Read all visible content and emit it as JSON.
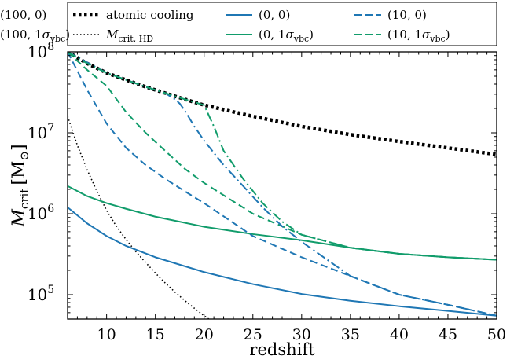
{
  "chart_data": {
    "type": "line",
    "title": "",
    "xlabel": "redshift",
    "ylabel": {
      "main": "M",
      "sub": "crit",
      "unit_open": "[M",
      "unit_sub": "⊙",
      "unit_close": "]"
    },
    "xlim": [
      6,
      50
    ],
    "ylim": [
      50000,
      100000000
    ],
    "yscale": "log",
    "xticks": [
      10,
      15,
      20,
      25,
      30,
      35,
      40,
      45,
      50
    ],
    "yticks": [
      {
        "value": 100000,
        "base": "10",
        "exp": "5"
      },
      {
        "value": 1000000,
        "base": "10",
        "exp": "6"
      },
      {
        "value": 10000000,
        "base": "10",
        "exp": "7"
      },
      {
        "value": 100000000,
        "base": "10",
        "exp": "8"
      }
    ],
    "grid": false,
    "legend_position": "top",
    "series": [
      {
        "name": "atomic cooling",
        "color": "#000000",
        "dash": "dotted-thick",
        "x": [
          6,
          8,
          10,
          12,
          14,
          16,
          18,
          20,
          25,
          30,
          35,
          40,
          45,
          50
        ],
        "y": [
          100000000,
          72000000,
          55000000,
          45000000,
          37000000,
          31000000,
          26000000,
          22000000,
          16000000,
          12000000,
          9500000,
          7800000,
          6500000,
          5400000
        ]
      },
      {
        "name": "M_crit,HD",
        "color": "#000000",
        "dash": "dotted",
        "x": [
          6,
          7,
          8,
          9,
          10,
          11,
          12,
          13,
          14,
          15,
          16,
          17,
          18,
          19,
          20,
          21
        ],
        "y": [
          16000000,
          7000000,
          3500000,
          1900000,
          1100000,
          700000,
          480000,
          340000,
          250000,
          185000,
          140000,
          108000,
          85000,
          68000,
          55000,
          45000
        ]
      },
      {
        "name": "(0, 0)",
        "color": "#1f77b4",
        "dash": "solid",
        "x": [
          6,
          8,
          10,
          12,
          15,
          20,
          25,
          30,
          35,
          40,
          45,
          50
        ],
        "y": [
          1200000,
          760000,
          530000,
          400000,
          290000,
          190000,
          135000,
          102000,
          84000,
          72000,
          63000,
          55000
        ]
      },
      {
        "name": "(0, 1σ_vbc)",
        "color": "#119c6b",
        "dash": "solid",
        "x": [
          6,
          8,
          10,
          12,
          15,
          20,
          25,
          30,
          35,
          40,
          45,
          50
        ],
        "y": [
          2200000,
          1650000,
          1350000,
          1150000,
          920000,
          690000,
          560000,
          470000,
          380000,
          320000,
          290000,
          270000
        ]
      },
      {
        "name": "(10, 0)",
        "color": "#1f77b4",
        "dash": "dashed",
        "x": [
          6,
          8,
          10,
          12,
          14,
          16,
          18,
          20,
          25,
          30,
          35,
          40,
          45,
          50
        ],
        "y": [
          100000000,
          34000000,
          13000000,
          6500000,
          4000000,
          2700000,
          1900000,
          1350000,
          530000,
          290000,
          170000,
          100000,
          75000,
          55000
        ]
      },
      {
        "name": "(10, 1σ_vbc)",
        "color": "#119c6b",
        "dash": "dashed",
        "x": [
          6,
          8,
          10,
          12,
          14,
          16,
          18,
          20,
          25,
          30,
          35,
          40,
          45,
          50
        ],
        "y": [
          100000000,
          60000000,
          38000000,
          18000000,
          10000000,
          6000000,
          3600000,
          2400000,
          1000000,
          550000,
          380000,
          320000,
          290000,
          270000
        ]
      },
      {
        "name": "(100, 0)",
        "color": "#1f77b4",
        "dash": "dashdot",
        "x": [
          6,
          10,
          14,
          16,
          17,
          17.5,
          18,
          19,
          20,
          22,
          24,
          26,
          28,
          30,
          35,
          40,
          45,
          50
        ],
        "y": [
          100000000,
          55000000,
          37000000,
          31000000,
          26000000,
          23000000,
          19000000,
          12000000,
          8000000,
          4000000,
          2200000,
          1200000,
          700000,
          450000,
          170000,
          100000,
          75000,
          55000
        ]
      },
      {
        "name": "(100, 1σ_vbc)",
        "color": "#119c6b",
        "dash": "dashdot",
        "x": [
          6,
          8,
          10,
          12,
          14,
          16,
          18,
          20,
          21,
          22,
          24,
          26,
          28,
          30,
          35,
          40,
          45,
          50
        ],
        "y": [
          100000000,
          72000000,
          55000000,
          45000000,
          37000000,
          31000000,
          26000000,
          22000000,
          12000000,
          6000000,
          2700000,
          1350000,
          800000,
          550000,
          380000,
          320000,
          290000,
          270000
        ]
      }
    ]
  }
}
